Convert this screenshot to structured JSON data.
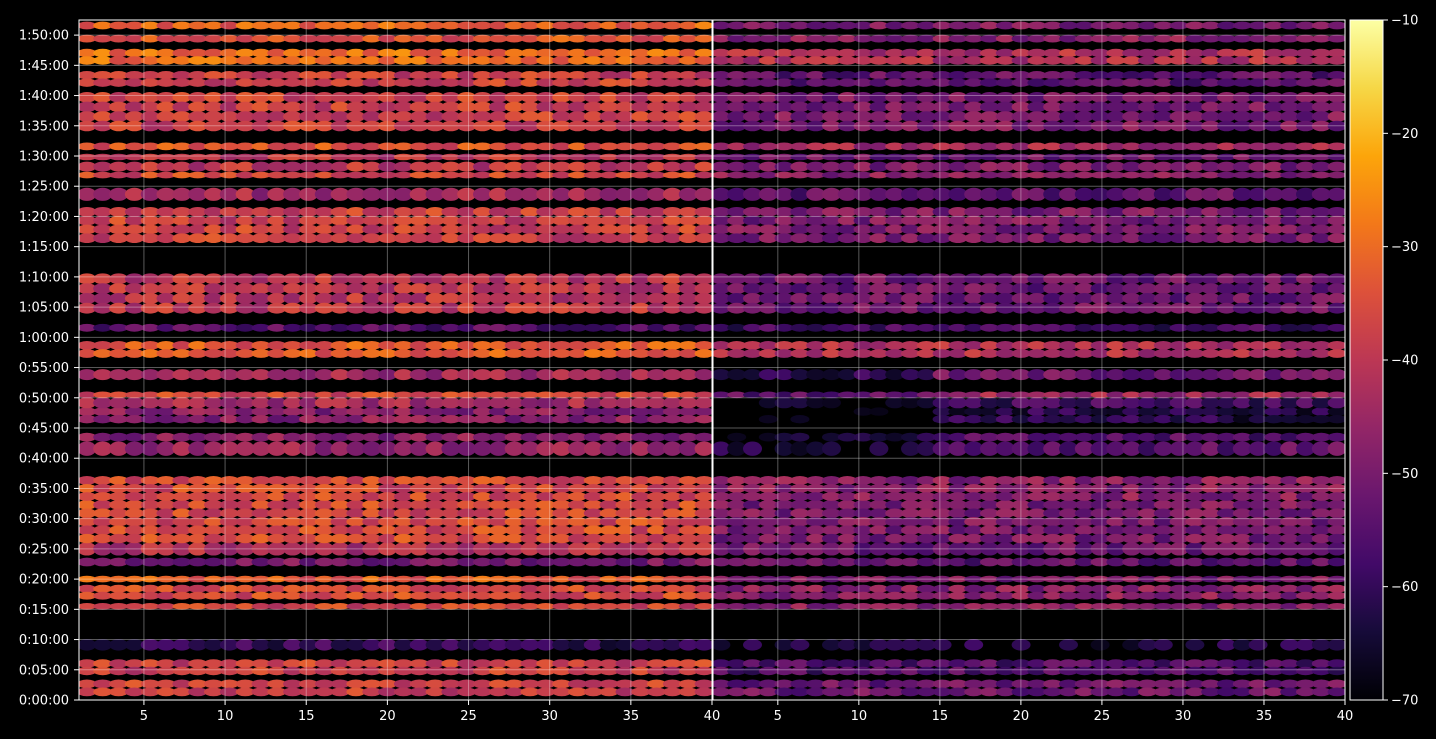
{
  "chart_data": {
    "type": "heatmap",
    "title": "",
    "xlabel": "",
    "ylabel": "",
    "grid": true,
    "panels": [
      {
        "name": "",
        "xlim": [
          1,
          40
        ],
        "xticks": [
          5,
          10,
          15,
          20,
          25,
          30,
          35,
          40
        ]
      },
      {
        "name": "",
        "xlim": [
          1,
          40
        ],
        "xticks": [
          5,
          10,
          15,
          20,
          25,
          30,
          35,
          40
        ]
      }
    ],
    "y_unit": "seconds",
    "ylim": [
      0,
      6750
    ],
    "yticks": [
      0,
      300,
      600,
      900,
      1200,
      1500,
      1800,
      2100,
      2400,
      2700,
      3000,
      3300,
      3600,
      3900,
      4200,
      4500,
      4800,
      5100,
      5400,
      5700,
      6000,
      6300,
      6600
    ],
    "ytick_labels": [
      "0:00:00",
      "0:05:00",
      "0:10:00",
      "0:15:00",
      "0:20:00",
      "0:25:00",
      "0:30:00",
      "0:35:00",
      "0:40:00",
      "0:45:00",
      "0:50:00",
      "0:55:00",
      "1:00:00",
      "1:05:00",
      "1:10:00",
      "1:15:00",
      "1:20:00",
      "1:25:00",
      "1:30:00",
      "1:35:00",
      "1:40:00",
      "1:45:00",
      "1:50:00"
    ],
    "colorbar": {
      "colormap": "inferno",
      "range": [
        -70,
        -10
      ],
      "ticks": [
        -70,
        -60,
        -50,
        -40,
        -30,
        -20,
        -10
      ],
      "tick_labels": [
        "−70",
        "−60",
        "−50",
        "−40",
        "−30",
        "−20",
        "−10"
      ]
    },
    "activity_bands": [
      {
        "start": 40,
        "end": 200,
        "left_level": -38,
        "right_level": -52
      },
      {
        "start": 250,
        "end": 400,
        "left_level": -38,
        "right_level": -56
      },
      {
        "start": 495,
        "end": 600,
        "left_level": -60,
        "right_level": -64
      },
      {
        "start": 900,
        "end": 960,
        "left_level": -37,
        "right_level": -48
      },
      {
        "start": 1000,
        "end": 1140,
        "left_level": -36,
        "right_level": -48
      },
      {
        "start": 1170,
        "end": 1230,
        "left_level": -33,
        "right_level": -50
      },
      {
        "start": 1330,
        "end": 1410,
        "left_level": -50,
        "right_level": -54
      },
      {
        "start": 1440,
        "end": 1560,
        "left_level": -42,
        "right_level": -52
      },
      {
        "start": 1560,
        "end": 1980,
        "left_level": -36,
        "right_level": -50
      },
      {
        "start": 1980,
        "end": 2220,
        "left_level": -36,
        "right_level": -48
      },
      {
        "start": 2430,
        "end": 2560,
        "left_level": -45,
        "right_level": -54
      },
      {
        "start": 2570,
        "end": 2650,
        "left_level": -48,
        "right_level": -56
      },
      {
        "start": 2750,
        "end": 2900,
        "left_level": -48,
        "right_level": -62
      },
      {
        "start": 2900,
        "end": 3000,
        "left_level": -44,
        "right_level": -58
      },
      {
        "start": 3000,
        "end": 3060,
        "left_level": -36,
        "right_level": -44
      },
      {
        "start": 3180,
        "end": 3280,
        "left_level": -44,
        "right_level": -52
      },
      {
        "start": 3400,
        "end": 3560,
        "left_level": -33,
        "right_level": -42
      },
      {
        "start": 3660,
        "end": 3730,
        "left_level": -55,
        "right_level": -58
      },
      {
        "start": 3840,
        "end": 4230,
        "left_level": -40,
        "right_level": -52
      },
      {
        "start": 4540,
        "end": 4890,
        "left_level": -38,
        "right_level": -50
      },
      {
        "start": 4960,
        "end": 5080,
        "left_level": -44,
        "right_level": -54
      },
      {
        "start": 5180,
        "end": 5240,
        "left_level": -36,
        "right_level": -48
      },
      {
        "start": 5250,
        "end": 5340,
        "left_level": -40,
        "right_level": -50
      },
      {
        "start": 5360,
        "end": 5420,
        "left_level": -40,
        "right_level": -52
      },
      {
        "start": 5460,
        "end": 5530,
        "left_level": -34,
        "right_level": -44
      },
      {
        "start": 5650,
        "end": 6030,
        "left_level": -38,
        "right_level": -50
      },
      {
        "start": 6090,
        "end": 6240,
        "left_level": -38,
        "right_level": -54
      },
      {
        "start": 6310,
        "end": 6460,
        "left_level": -30,
        "right_level": -42
      },
      {
        "start": 6530,
        "end": 6600,
        "left_level": -34,
        "right_level": -48
      },
      {
        "start": 6660,
        "end": 6730,
        "left_level": -32,
        "right_level": -50
      }
    ]
  }
}
